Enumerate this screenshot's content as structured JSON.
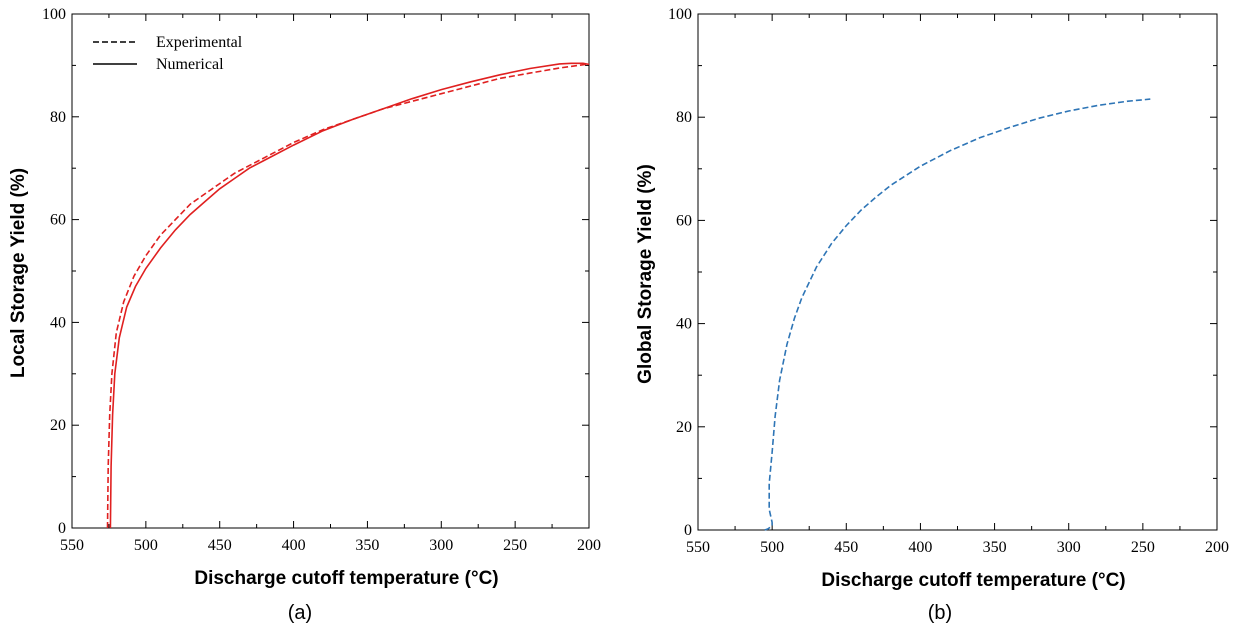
{
  "chart_data": [
    {
      "type": "line",
      "panel_label": "(a)",
      "xlabel": "Discharge cutoff temperature (°C)",
      "ylabel": "Local Storage Yield (%)",
      "xlim": [
        550,
        200
      ],
      "ylim": [
        0,
        100
      ],
      "x_reversed": true,
      "xticks": [
        550,
        500,
        450,
        400,
        350,
        300,
        250,
        200
      ],
      "yticks": [
        0,
        20,
        40,
        60,
        80,
        100
      ],
      "legend_position": "top-left",
      "grid": false,
      "series": [
        {
          "name": "Experimental",
          "style": "dashed",
          "color": "#e02020",
          "x": [
            526,
            525.5,
            524.5,
            523,
            520,
            515,
            508,
            500,
            490,
            480,
            470,
            460,
            450,
            440,
            430,
            420,
            400,
            380,
            360,
            340,
            320,
            300,
            280,
            260,
            240,
            220,
            200
          ],
          "y": [
            0,
            12,
            22,
            30,
            38,
            44,
            49,
            53,
            57,
            60,
            63,
            65,
            67,
            69,
            70.5,
            72,
            75,
            77.5,
            79.5,
            81.5,
            83,
            84.5,
            86,
            87.5,
            88.5,
            89.5,
            90.3
          ]
        },
        {
          "name": "Numerical",
          "style": "solid",
          "color": "#e02020",
          "x": [
            524,
            523.5,
            522.5,
            521,
            518,
            513,
            507,
            500,
            490,
            480,
            470,
            460,
            450,
            440,
            430,
            420,
            400,
            380,
            360,
            340,
            320,
            300,
            280,
            260,
            240,
            220,
            212,
            204,
            200
          ],
          "y": [
            0,
            12,
            22,
            30,
            37,
            43,
            47,
            50.5,
            54.5,
            58,
            61,
            63.5,
            66,
            68,
            70,
            71.5,
            74.5,
            77.3,
            79.5,
            81.5,
            83.5,
            85.3,
            86.8,
            88.2,
            89.4,
            90.3,
            90.4,
            90.4,
            90.2
          ]
        }
      ]
    },
    {
      "type": "line",
      "panel_label": "(b)",
      "xlabel": "Discharge cutoff temperature (°C)",
      "ylabel": "Global Storage Yield (%)",
      "xlim": [
        550,
        200
      ],
      "ylim": [
        0,
        100
      ],
      "x_reversed": true,
      "xticks": [
        550,
        500,
        450,
        400,
        350,
        300,
        250,
        200
      ],
      "yticks": [
        0,
        20,
        40,
        60,
        80,
        100
      ],
      "grid": false,
      "series": [
        {
          "style": "dashed",
          "color": "#2e75b6",
          "x": [
            505,
            503,
            500,
            500,
            502,
            502,
            500,
            498,
            495,
            490,
            485,
            480,
            470,
            460,
            450,
            440,
            430,
            420,
            400,
            380,
            360,
            340,
            320,
            300,
            280,
            260,
            245
          ],
          "y": [
            0,
            0.2,
            0.8,
            1.5,
            4,
            9,
            15,
            22,
            29,
            36,
            41,
            45,
            51,
            55.5,
            59,
            62,
            64.5,
            66.8,
            70.5,
            73.5,
            76,
            78,
            79.8,
            81.2,
            82.3,
            83.1,
            83.5
          ]
        }
      ]
    }
  ]
}
